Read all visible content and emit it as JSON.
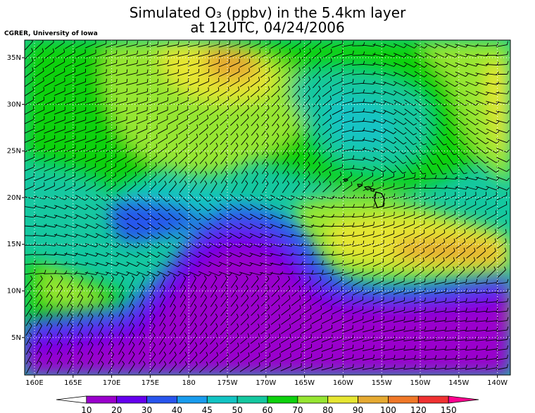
{
  "title": {
    "line1": "Simulated O₃ (ppbv) in the 5.4km layer",
    "line2": "at 12UTC, 04/24/2006"
  },
  "credit": "CGRER, University of Iowa",
  "map": {
    "lat_ticks": [
      "35N",
      "30N",
      "25N",
      "20N",
      "15N",
      "10N",
      "5N"
    ],
    "lon_ticks": [
      "160E",
      "165E",
      "170E",
      "175E",
      "180",
      "175W",
      "170W",
      "165W",
      "160W",
      "155W",
      "150W",
      "145W",
      "140W"
    ],
    "features": [
      "ozone-field",
      "wind-barbs",
      "hawaiian-islands",
      "dotted-graticule"
    ]
  },
  "colorbar": {
    "labels": [
      "10",
      "20",
      "30",
      "40",
      "45",
      "50",
      "60",
      "70",
      "80",
      "90",
      "100",
      "120",
      "150"
    ],
    "colors": [
      "#ffffff",
      "#9a00cc",
      "#6600ee",
      "#2855ee",
      "#199cee",
      "#12c4c4",
      "#14c8a0",
      "#0ed20e",
      "#96e632",
      "#e6e632",
      "#e6aa32",
      "#f07828",
      "#f03232",
      "#ff0090"
    ]
  }
}
